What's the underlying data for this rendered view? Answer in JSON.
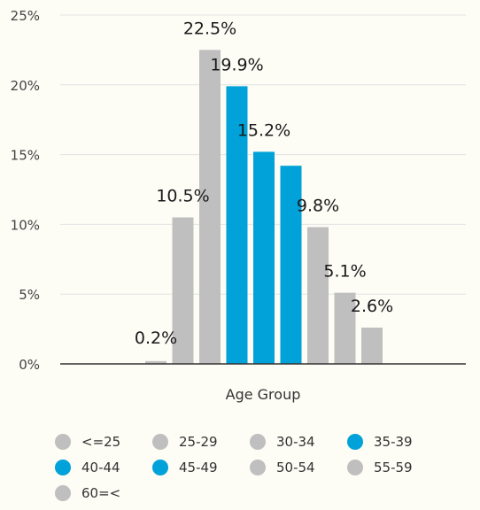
{
  "chart_data": {
    "type": "bar",
    "categories": [
      "<=25",
      "25-29",
      "30-34",
      "35-39",
      "40-44",
      "45-49",
      "50-54",
      "55-59",
      "60=<"
    ],
    "values": [
      0.2,
      10.5,
      22.5,
      19.9,
      15.2,
      14.2,
      9.8,
      5.1,
      2.6
    ],
    "data_labels": [
      "0.2%",
      "10.5%",
      "22.5%",
      "19.9%",
      "15.2%",
      "",
      "9.8%",
      "5.1%",
      "2.6%"
    ],
    "xlabel": "Age Group",
    "ylabel": "",
    "ylim": [
      0,
      25
    ],
    "yticks": [
      0,
      5,
      10,
      15,
      20,
      25
    ],
    "ytick_labels": [
      "0%",
      "5%",
      "10%",
      "15%",
      "20%",
      "25%"
    ],
    "grid": true,
    "legend_position": "bottom",
    "colors": {
      "gray": "#bfbfbf",
      "blue": "#00a2d9",
      "background": "#fdfcf5",
      "gridline": "#e3e3e3",
      "axis": "#333333"
    },
    "bar_colors": [
      "#bfbfbf",
      "#bfbfbf",
      "#bfbfbf",
      "#00a2d9",
      "#00a2d9",
      "#00a2d9",
      "#bfbfbf",
      "#bfbfbf",
      "#bfbfbf"
    ],
    "legend": [
      {
        "label": "<=25",
        "color": "#bfbfbf"
      },
      {
        "label": "25-29",
        "color": "#bfbfbf"
      },
      {
        "label": "30-34",
        "color": "#bfbfbf"
      },
      {
        "label": "35-39",
        "color": "#00a2d9"
      },
      {
        "label": "40-44",
        "color": "#00a2d9"
      },
      {
        "label": "45-49",
        "color": "#00a2d9"
      },
      {
        "label": "50-54",
        "color": "#bfbfbf"
      },
      {
        "label": "55-59",
        "color": "#bfbfbf"
      },
      {
        "label": "60=<",
        "color": "#bfbfbf"
      }
    ]
  }
}
